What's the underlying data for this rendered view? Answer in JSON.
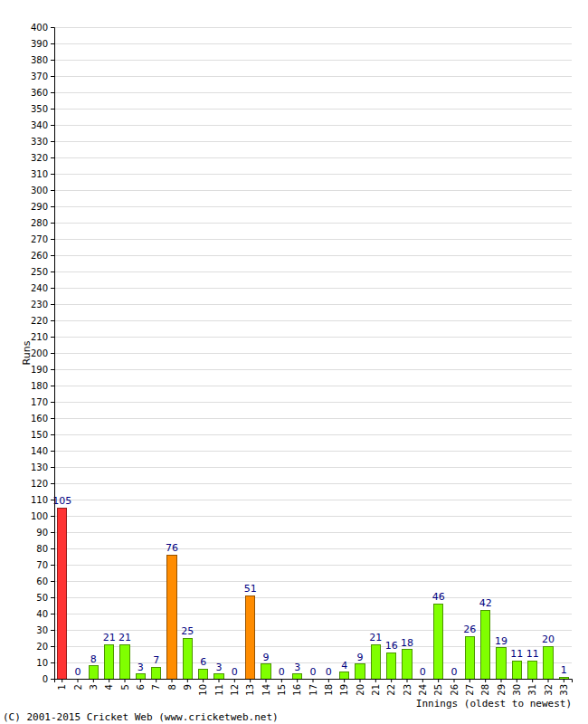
{
  "chart_data": {
    "type": "bar",
    "y_label": "Runs",
    "x_label": "Innings (oldest to newest)",
    "annotations": [
      "(C) 2001-2015 Cricket Web (www.cricketweb.net)"
    ],
    "categories": [
      "1",
      "2",
      "3",
      "4",
      "5",
      "6",
      "7",
      "8",
      "9",
      "10",
      "11",
      "12",
      "13",
      "14",
      "15",
      "16",
      "17",
      "18",
      "19",
      "20",
      "21",
      "22",
      "23",
      "24",
      "25",
      "26",
      "27",
      "28",
      "29",
      "30",
      "31",
      "32",
      "33"
    ],
    "values": [
      105,
      0,
      8,
      21,
      21,
      3,
      7,
      76,
      25,
      6,
      3,
      0,
      51,
      9,
      0,
      3,
      0,
      0,
      4,
      9,
      21,
      16,
      18,
      0,
      46,
      0,
      26,
      42,
      19,
      11,
      11,
      20,
      1
    ],
    "colors": [
      "#ff3333",
      "#80ff00",
      "#80ff00",
      "#80ff00",
      "#80ff00",
      "#80ff00",
      "#80ff00",
      "#ff8c00",
      "#80ff00",
      "#80ff00",
      "#80ff00",
      "#80ff00",
      "#ff8c00",
      "#80ff00",
      "#80ff00",
      "#80ff00",
      "#80ff00",
      "#80ff00",
      "#80ff00",
      "#80ff00",
      "#80ff00",
      "#80ff00",
      "#80ff00",
      "#80ff00",
      "#80ff00",
      "#80ff00",
      "#80ff00",
      "#80ff00",
      "#80ff00",
      "#80ff00",
      "#80ff00",
      "#80ff00",
      "#80ff00"
    ],
    "ylim": [
      0,
      400
    ],
    "yticks": [
      0,
      10,
      20,
      30,
      40,
      50,
      60,
      70,
      80,
      90,
      100,
      110,
      120,
      130,
      140,
      150,
      160,
      170,
      180,
      190,
      200,
      210,
      220,
      230,
      240,
      250,
      260,
      270,
      280,
      290,
      300,
      310,
      320,
      330,
      340,
      350,
      360,
      370,
      380,
      390,
      400
    ],
    "grid": true,
    "data_labels": true
  }
}
